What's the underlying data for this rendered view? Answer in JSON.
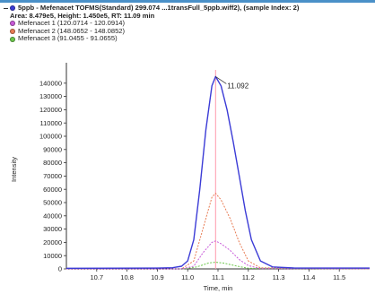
{
  "colors": {
    "main": "#3b3bd6",
    "ion1": "#c85ad8",
    "ion2": "#e87c54",
    "ion3": "#6cc84c",
    "retention_marker": "#ff9aaa",
    "frame": "#4a90c8"
  },
  "header": {
    "title": "5ppb - Mefenacet TOFMS(Standard) 299.074 ...1transFull_5ppb.wiff2), (sample Index: 2)",
    "subtitle": "Area: 8.479e5, Height: 1.450e5, RT: 11.09 min",
    "marker_icon": "minus-icon"
  },
  "chart_data": {
    "type": "line",
    "xlabel": "Time, min",
    "ylabel": "Intensity",
    "xlim": [
      10.6,
      11.6
    ],
    "ylim": [
      0,
      150000
    ],
    "x_ticks": [
      "10.7",
      "10.8",
      "10.9",
      "11.0",
      "11.1",
      "11.2",
      "11.3",
      "11.4",
      "11.5"
    ],
    "y_ticks": [
      "0",
      "10000",
      "20000",
      "30000",
      "40000",
      "50000",
      "60000",
      "70000",
      "80000",
      "90000",
      "100000",
      "110000",
      "120000",
      "130000",
      "140000"
    ],
    "grid": false,
    "legend_position": "top-left",
    "peak_label": "11.092",
    "retention_time": 11.092,
    "series": [
      {
        "name": "5ppb - Mefenacet TOFMS(Standard) 299.074 ...1transFull_5ppb.wiff2), (sample Index: 2)",
        "color_key": "main",
        "x": [
          10.6,
          10.9,
          10.95,
          10.98,
          11.0,
          11.02,
          11.04,
          11.06,
          11.08,
          11.092,
          11.11,
          11.13,
          11.15,
          11.17,
          11.19,
          11.21,
          11.24,
          11.28,
          11.35,
          11.6
        ],
        "y": [
          500,
          600,
          900,
          2000,
          6000,
          22000,
          60000,
          105000,
          138000,
          145000,
          138000,
          120000,
          96000,
          70000,
          44000,
          22000,
          6000,
          1500,
          700,
          600
        ]
      },
      {
        "name": "Mefenacet 1 (120.0714 - 120.0914)",
        "color_key": "ion1",
        "x": [
          10.6,
          10.98,
          11.02,
          11.05,
          11.08,
          11.092,
          11.11,
          11.14,
          11.17,
          11.2,
          11.24,
          11.6
        ],
        "y": [
          0,
          0,
          2000,
          12000,
          20000,
          21000,
          19000,
          14000,
          7000,
          2500,
          300,
          0
        ]
      },
      {
        "name": "Mefenacet 2 (148.0652 - 148.0852)",
        "color_key": "ion2",
        "x": [
          10.6,
          10.98,
          11.02,
          11.05,
          11.08,
          11.092,
          11.11,
          11.14,
          11.17,
          11.2,
          11.24,
          11.6
        ],
        "y": [
          0,
          0,
          6000,
          30000,
          54000,
          57000,
          52000,
          38000,
          20000,
          6000,
          800,
          0
        ]
      },
      {
        "name": "Mefenacet 3 (91.0455 - 91.0655)",
        "color_key": "ion3",
        "x": [
          10.6,
          10.99,
          11.03,
          11.07,
          11.092,
          11.12,
          11.16,
          11.2,
          11.6
        ],
        "y": [
          0,
          0,
          1500,
          4500,
          5000,
          4300,
          2200,
          500,
          0
        ]
      }
    ]
  }
}
